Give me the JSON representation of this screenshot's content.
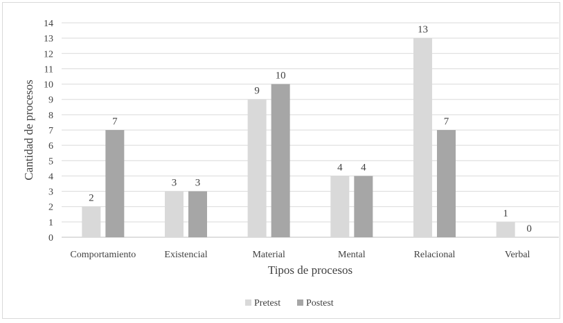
{
  "chart_data": {
    "type": "bar",
    "xlabel": "Tipos de procesos",
    "ylabel": "Cantidad de procesos",
    "categories": [
      "Comportamiento",
      "Existencial",
      "Material",
      "Mental",
      "Relacional",
      "Verbal"
    ],
    "series": [
      {
        "name": "Pretest",
        "color": "#d9d9d9",
        "values": [
          2,
          3,
          9,
          4,
          13,
          1
        ]
      },
      {
        "name": "Postest",
        "color": "#a6a6a6",
        "values": [
          7,
          3,
          10,
          4,
          7,
          0
        ]
      }
    ],
    "ylim": [
      0,
      14
    ],
    "yticks": [
      "0",
      "1",
      "2",
      "3",
      "4",
      "5",
      "6",
      "7",
      "8",
      "9",
      "10",
      "11",
      "12",
      "13",
      "14"
    ],
    "grid": true,
    "legend": "bottom-center"
  }
}
